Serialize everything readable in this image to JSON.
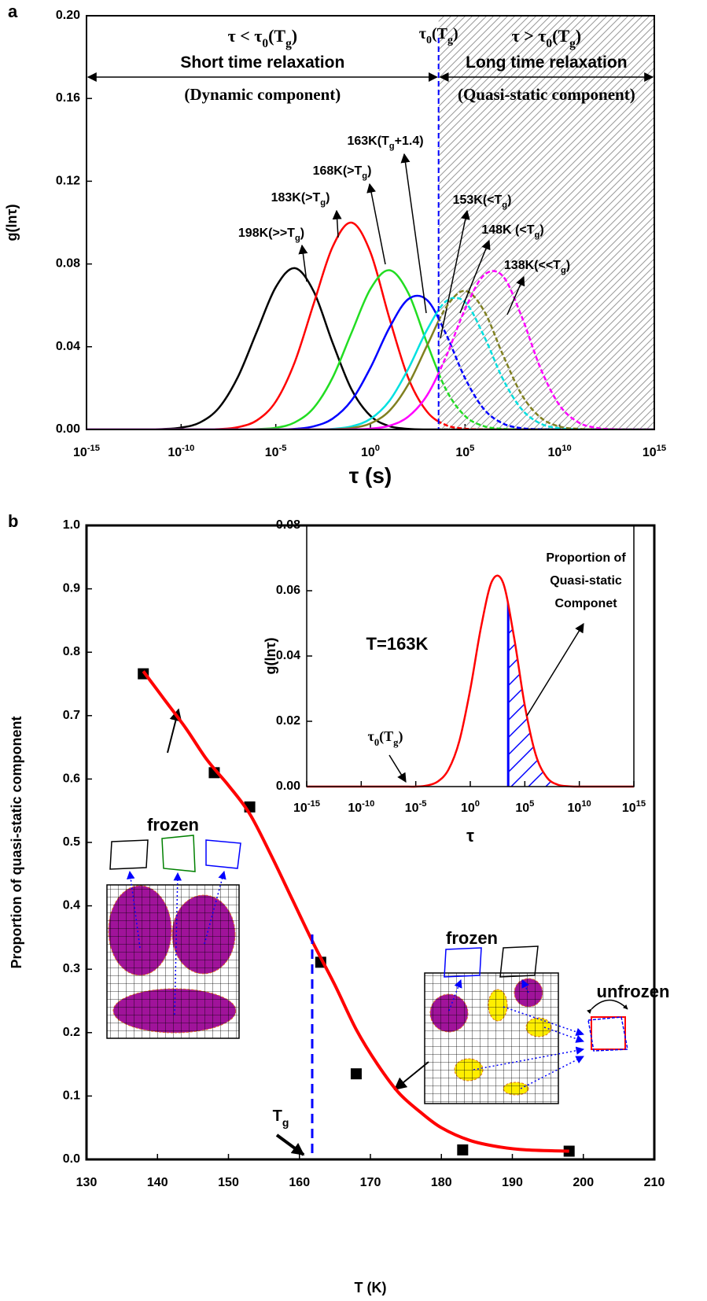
{
  "chart_data": [
    {
      "type": "line",
      "panel_label": "a",
      "xlabel": "τ (s)",
      "ylabel": "g(lnτ)",
      "xscale": "log",
      "xlim": [
        1e-15,
        1000000000000000.0
      ],
      "xticks": [
        {
          "value": 1e-15,
          "label": "10-15"
        },
        {
          "value": 1e-10,
          "label": "10-10"
        },
        {
          "value": 1e-05,
          "label": "10-5"
        },
        {
          "value": 1,
          "label": "100"
        },
        {
          "value": 100000.0,
          "label": "105"
        },
        {
          "value": 10000000000.0,
          "label": "1010"
        },
        {
          "value": 1000000000000000.0,
          "label": "1015"
        }
      ],
      "ylim": [
        0,
        0.2
      ],
      "yticks": [
        {
          "value": 0,
          "label": "0.00"
        },
        {
          "value": 0.04,
          "label": "0.04"
        },
        {
          "value": 0.08,
          "label": "0.08"
        },
        {
          "value": 0.12,
          "label": "0.12"
        },
        {
          "value": 0.16,
          "label": "0.16"
        },
        {
          "value": 0.2,
          "label": "0.20"
        }
      ],
      "tau0": 4000,
      "tau0_label": "τ0(Tg)",
      "regions": [
        {
          "condition": "τ < τ0(Tg)",
          "label": "Short time relaxation",
          "component": "(Dynamic component)"
        },
        {
          "condition": "τ > τ0(Tg)",
          "label": "Long time relaxation",
          "component": "(Quasi-static component)"
        }
      ],
      "x": [
        1e-15,
        1e-14,
        1e-13,
        1e-12,
        1e-11,
        1e-10,
        1e-09,
        1e-08,
        1e-07,
        1e-06,
        1e-05,
        0.0001,
        0.001,
        0.01,
        0.1,
        1,
        10,
        100,
        1000,
        10000.0,
        100000.0,
        1000000.0,
        10000000.0,
        100000000.0,
        1000000000.0,
        10000000000.0,
        100000000000.0,
        1000000000000.0,
        10000000000000.0,
        100000000000000.0,
        1000000000000000.0
      ],
      "series": [
        {
          "label": "198K(>>Tg)",
          "color": "#000000",
          "values": [
            0,
            0,
            0,
            0,
            0.0002,
            0.0009,
            0.0034,
            0.0105,
            0.0254,
            0.0473,
            0.0688,
            0.078,
            0.0668,
            0.042,
            0.0194,
            0.0066,
            0.0016,
            0.0003,
            0,
            0,
            0,
            0,
            0,
            0,
            0,
            0,
            0,
            0,
            0,
            0,
            0
          ]
        },
        {
          "label": "183K(>Tg)",
          "color": "#ff0000",
          "values": [
            0,
            0,
            0,
            0,
            0,
            0,
            0,
            0.0002,
            0.0011,
            0.0044,
            0.0135,
            0.0325,
            0.0607,
            0.0882,
            0.1,
            0.0857,
            0.0539,
            0.0249,
            0.0085,
            0.0021,
            0.0004,
            0,
            0,
            0,
            0,
            0,
            0,
            0,
            0,
            0,
            0
          ]
        },
        {
          "label": "168K(>Tg)",
          "color": "#22dd22",
          "values": [
            0,
            0,
            0,
            0,
            0,
            0,
            0,
            0,
            0,
            0.0002,
            0.0008,
            0.0034,
            0.0104,
            0.025,
            0.0467,
            0.0679,
            0.077,
            0.066,
            0.0415,
            0.0192,
            0.0065,
            0.0016,
            0.0003,
            0,
            0,
            0,
            0,
            0,
            0,
            0,
            0
          ]
        },
        {
          "label": "163K(Tg+1.4)",
          "color": "#0000ff",
          "values": [
            0,
            0,
            0,
            0,
            0,
            0,
            0,
            0,
            0,
            0,
            0,
            0.0003,
            0.0015,
            0.0052,
            0.014,
            0.0298,
            0.0491,
            0.063,
            0.0625,
            0.046,
            0.0248,
            0.0098,
            0.0029,
            0.0006,
            0.0001,
            0,
            0,
            0,
            0,
            0,
            0
          ]
        },
        {
          "label": "153K(<Tg)",
          "color": "#00e0e0",
          "values": [
            0,
            0,
            0,
            0,
            0,
            0,
            0,
            0,
            0,
            0,
            0,
            0,
            0,
            0.0003,
            0.0015,
            0.0051,
            0.0138,
            0.0293,
            0.0483,
            0.062,
            0.0616,
            0.0452,
            0.0244,
            0.0097,
            0.0028,
            0.0006,
            0.0001,
            0,
            0,
            0,
            0
          ]
        },
        {
          "label": "148K (<Tg)",
          "color": "#808020",
          "values": [
            0,
            0,
            0,
            0,
            0,
            0,
            0,
            0,
            0,
            0,
            0,
            0,
            0,
            0.0001,
            0.0007,
            0.0029,
            0.009,
            0.0218,
            0.0407,
            0.0591,
            0.067,
            0.0574,
            0.0361,
            0.0167,
            0.0057,
            0.0014,
            0.0003,
            0,
            0,
            0,
            0
          ]
        },
        {
          "label": "138K(<<Tg)",
          "color": "#ff00ff",
          "values": [
            0,
            0,
            0,
            0,
            0,
            0,
            0,
            0,
            0,
            0,
            0,
            0,
            0,
            0,
            0.0001,
            0.0004,
            0.0018,
            0.0062,
            0.0166,
            0.0353,
            0.0581,
            0.0746,
            0.0741,
            0.0544,
            0.0293,
            0.0116,
            0.0034,
            0.0007,
            0.0001,
            0,
            0
          ]
        }
      ]
    },
    {
      "type": "scatter",
      "panel_label": "b",
      "xlabel": "T (K)",
      "ylabel": "Proportion of quasi-static component",
      "xlim": [
        130,
        210
      ],
      "xticks": [
        130,
        140,
        150,
        160,
        170,
        180,
        190,
        200,
        210
      ],
      "ylim": [
        0,
        1
      ],
      "yticks": [
        {
          "value": 0,
          "label": "0.0"
        },
        {
          "value": 0.1,
          "label": "0.1"
        },
        {
          "value": 0.2,
          "label": "0.2"
        },
        {
          "value": 0.3,
          "label": "0.3"
        },
        {
          "value": 0.4,
          "label": "0.4"
        },
        {
          "value": 0.5,
          "label": "0.5"
        },
        {
          "value": 0.6,
          "label": "0.6"
        },
        {
          "value": 0.7,
          "label": "0.7"
        },
        {
          "value": 0.8,
          "label": "0.8"
        },
        {
          "value": 0.9,
          "label": "0.9"
        },
        {
          "value": 1,
          "label": "1.0"
        }
      ],
      "tg": 161.8,
      "tg_label": "Tg",
      "schematic_labels": {
        "frozen_left": "frozen",
        "frozen_right": "frozen",
        "unfrozen": "unfrozen"
      },
      "series": [
        {
          "marker": "square",
          "color": "#000000",
          "x": [
            138,
            148,
            153,
            163,
            168,
            183,
            198
          ],
          "values": [
            0.766,
            0.61,
            0.556,
            0.311,
            0.135,
            0.015,
            0.013
          ]
        },
        {
          "color": "#ff0000",
          "x": [
            138,
            141,
            144,
            147,
            150,
            153,
            156,
            159,
            162,
            165,
            168,
            171,
            174,
            177,
            180,
            184,
            188,
            192,
            198
          ],
          "values": [
            0.77,
            0.725,
            0.68,
            0.63,
            0.59,
            0.545,
            0.48,
            0.41,
            0.34,
            0.275,
            0.205,
            0.15,
            0.105,
            0.075,
            0.05,
            0.03,
            0.02,
            0.015,
            0.013
          ]
        }
      ]
    },
    {
      "type": "line",
      "xlabel": "τ",
      "ylabel": "g(lnτ)",
      "xscale": "log",
      "xlim": [
        1e-15,
        1000000000000000.0
      ],
      "xticks": [
        {
          "value": 1e-15,
          "label": "10-15"
        },
        {
          "value": 1e-10,
          "label": "10-10"
        },
        {
          "value": 1e-05,
          "label": "10-5"
        },
        {
          "value": 1,
          "label": "100"
        },
        {
          "value": 100000.0,
          "label": "105"
        },
        {
          "value": 10000000000.0,
          "label": "1010"
        },
        {
          "value": 1000000000000000.0,
          "label": "1015"
        }
      ],
      "ylim": [
        0,
        0.08
      ],
      "yticks": [
        {
          "value": 0,
          "label": "0.00"
        },
        {
          "value": 0.02,
          "label": "0.02"
        },
        {
          "value": 0.04,
          "label": "0.04"
        },
        {
          "value": 0.06,
          "label": "0.06"
        },
        {
          "value": 0.08,
          "label": "0.08"
        }
      ],
      "tau0": 3000,
      "tau0_label": "τ0(Tg)",
      "condition": "T=163K",
      "hatch_label": [
        "Proportion of",
        "Quasi-static",
        "Componet"
      ],
      "hatch_color": "#0000ff",
      "x": [
        1e-15,
        1e-14,
        1e-13,
        1e-12,
        1e-11,
        1e-10,
        1e-09,
        1e-08,
        1e-07,
        1e-06,
        1e-05,
        0.0001,
        0.001,
        0.01,
        0.1,
        1,
        10,
        100,
        1000,
        10000.0,
        100000.0,
        1000000.0,
        10000000.0,
        100000000.0,
        1000000000.0,
        10000000000.0,
        100000000000.0,
        1000000000000.0,
        10000000000000.0,
        100000000000000.0,
        1000000000000000.0
      ],
      "series": [
        {
          "color": "#ff0000",
          "values": [
            0,
            0,
            0,
            0,
            0,
            0,
            0,
            0,
            0,
            0,
            0,
            0.0003,
            0.0015,
            0.0052,
            0.014,
            0.0298,
            0.0491,
            0.063,
            0.0625,
            0.046,
            0.0248,
            0.0098,
            0.0029,
            0.0006,
            0.0001,
            0,
            0,
            0,
            0,
            0,
            0
          ]
        }
      ]
    }
  ]
}
